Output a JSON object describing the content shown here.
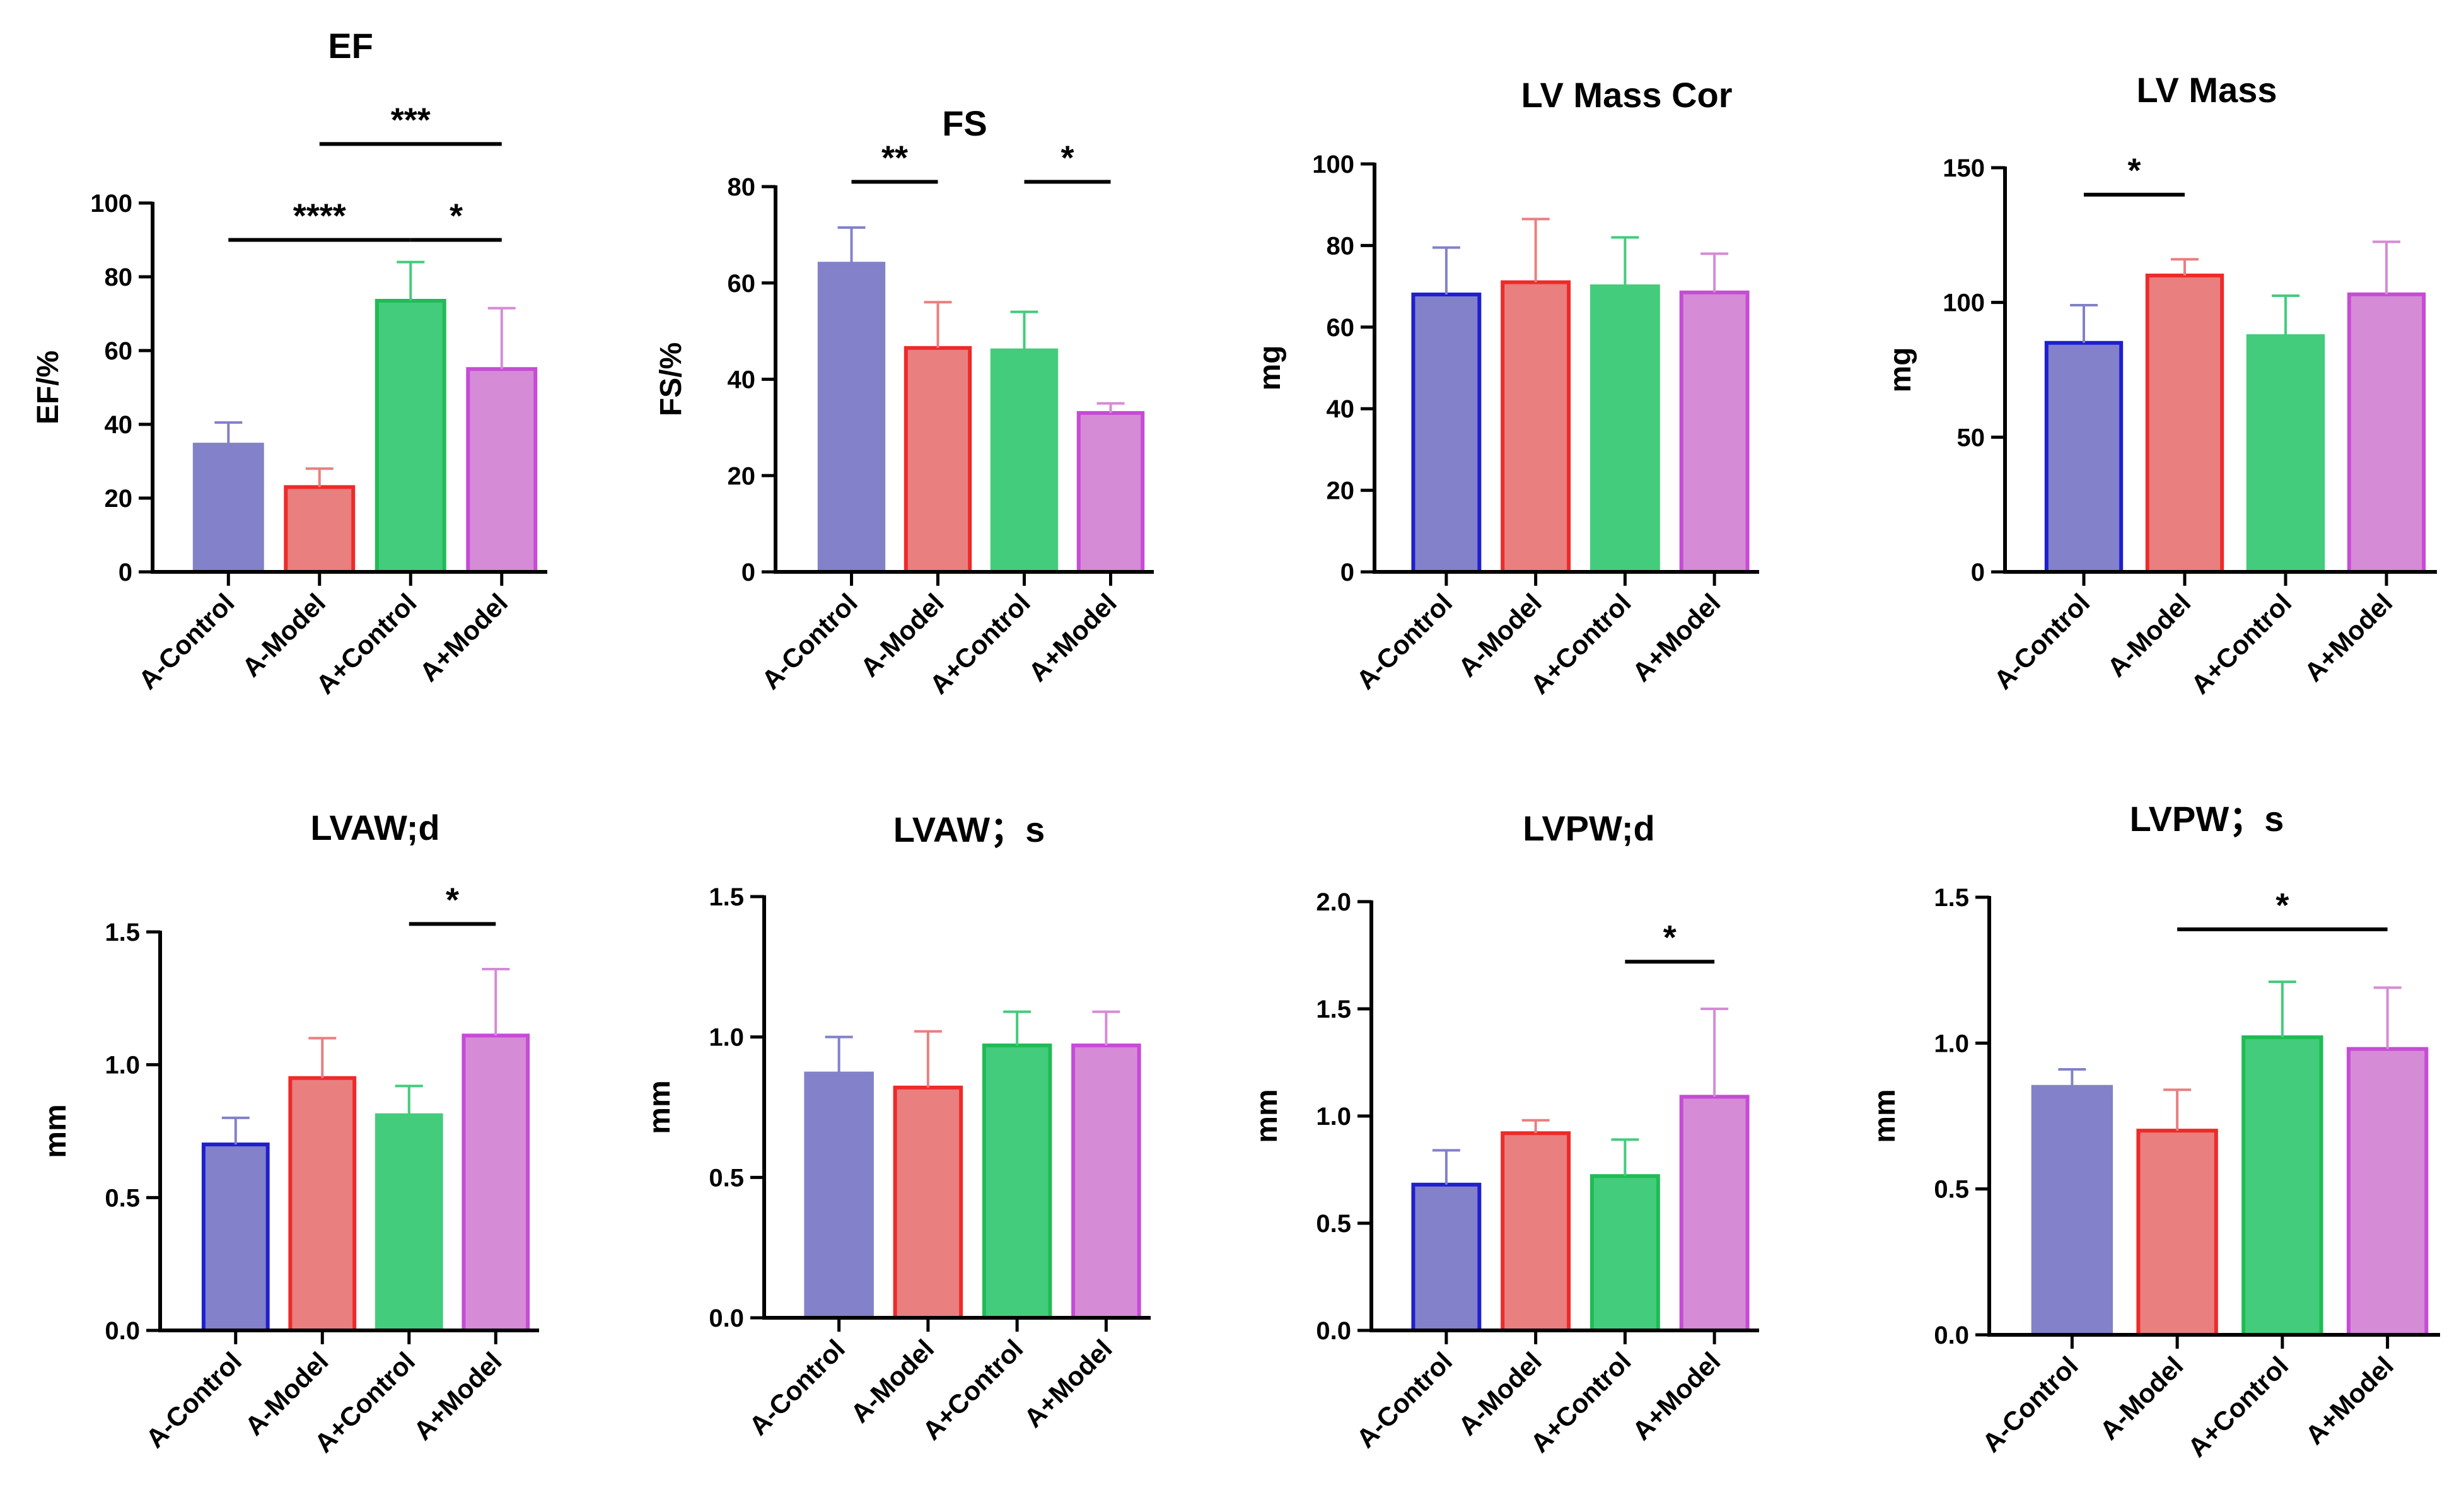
{
  "colors": {
    "fills": [
      "#8281c9",
      "#e97f7f",
      "#43cc7c",
      "#d68bd6"
    ],
    "edges_dark": [
      "#1f1fd0",
      "#ee2a2a",
      "#20bb55",
      "#c64bd6"
    ],
    "edges_light": [
      "#8281c9",
      "#e97f7f",
      "#43cc7c",
      "#d68bd6"
    ],
    "axis": "#000000"
  },
  "chart_data": [
    {
      "type": "bar",
      "title": "EF",
      "ylabel": "EF/%",
      "categories": [
        "A-Control",
        "A-Model",
        "A+Control",
        "A+Model"
      ],
      "values": [
        34.5,
        23,
        73.5,
        55
      ],
      "errors": [
        6,
        5,
        10.5,
        16.5
      ],
      "ylim": [
        0,
        100
      ],
      "yticks": [
        "0",
        "20",
        "40",
        "60",
        "80",
        "100"
      ],
      "edge_style": [
        "light",
        "dark",
        "dark",
        "dark"
      ],
      "significance": [
        {
          "from": 0,
          "to": 2,
          "label": "****",
          "level": 90
        },
        {
          "from": 2,
          "to": 3,
          "label": "*",
          "level": 90
        },
        {
          "from": 1,
          "to": 3,
          "label": "***",
          "level": 116
        }
      ]
    },
    {
      "type": "bar",
      "title": "FS",
      "ylabel": "FS/%",
      "categories": [
        "A-Control",
        "A-Model",
        "A+Control",
        "A+Model"
      ],
      "values": [
        64,
        46.5,
        46,
        33
      ],
      "errors": [
        7.5,
        9.5,
        8,
        2
      ],
      "ylim": [
        0,
        80
      ],
      "yticks": [
        "0",
        "20",
        "40",
        "60",
        "80"
      ],
      "edge_style": [
        "light",
        "dark",
        "light",
        "dark"
      ],
      "significance": [
        {
          "from": 0,
          "to": 1,
          "label": "**",
          "level": 81
        },
        {
          "from": 2,
          "to": 3,
          "label": "*",
          "level": 81
        }
      ]
    },
    {
      "type": "bar",
      "title": "LV Mass Cor",
      "ylabel": "mg",
      "categories": [
        "A-Control",
        "A-Model",
        "A+Control",
        "A+Model"
      ],
      "values": [
        68,
        71,
        70,
        68.5
      ],
      "errors": [
        11.5,
        15.5,
        12,
        9.5
      ],
      "ylim": [
        0,
        100
      ],
      "yticks": [
        "0",
        "20",
        "40",
        "60",
        "80",
        "100"
      ],
      "edge_style": [
        "dark",
        "dark",
        "light",
        "dark"
      ],
      "significance": []
    },
    {
      "type": "bar",
      "title": "LV Mass",
      "ylabel": "mg",
      "categories": [
        "A-Control",
        "A-Model",
        "A+Control",
        "A+Model"
      ],
      "values": [
        85,
        110,
        87.5,
        103
      ],
      "errors": [
        14,
        6,
        15,
        19.5
      ],
      "ylim": [
        0,
        150
      ],
      "yticks": [
        "0",
        "50",
        "100",
        "150"
      ],
      "edge_style": [
        "dark",
        "dark",
        "light",
        "dark"
      ],
      "significance": [
        {
          "from": 0,
          "to": 1,
          "label": "*",
          "level": 140
        }
      ]
    },
    {
      "type": "bar",
      "title": "LVAW;d",
      "ylabel": "mm",
      "categories": [
        "A-Control",
        "A-Model",
        "A+Control",
        "A+Model"
      ],
      "values": [
        0.7,
        0.95,
        0.81,
        1.11
      ],
      "errors": [
        0.1,
        0.15,
        0.11,
        0.25
      ],
      "ylim": [
        0,
        1.5
      ],
      "yticks": [
        "0.0",
        "0.5",
        "1.0",
        "1.5"
      ],
      "edge_style": [
        "dark",
        "dark",
        "light",
        "dark"
      ],
      "significance": [
        {
          "from": 2,
          "to": 3,
          "label": "*",
          "level": 1.53
        }
      ]
    },
    {
      "type": "bar",
      "title": "LVAW；s",
      "ylabel": "mm",
      "categories": [
        "A-Control",
        "A-Model",
        "A+Control",
        "A+Model"
      ],
      "values": [
        0.87,
        0.82,
        0.97,
        0.97
      ],
      "errors": [
        0.13,
        0.2,
        0.12,
        0.12
      ],
      "ylim": [
        0,
        1.5
      ],
      "yticks": [
        "0.0",
        "0.5",
        "1.0",
        "1.5"
      ],
      "edge_style": [
        "light",
        "dark",
        "dark",
        "dark"
      ],
      "significance": []
    },
    {
      "type": "bar",
      "title": "LVPW;d",
      "ylabel": "mm",
      "categories": [
        "A-Control",
        "A-Model",
        "A+Control",
        "A+Model"
      ],
      "values": [
        0.68,
        0.92,
        0.72,
        1.09
      ],
      "errors": [
        0.16,
        0.06,
        0.17,
        0.41
      ],
      "ylim": [
        0,
        2.0
      ],
      "yticks": [
        "0.0",
        "0.5",
        "1.0",
        "1.5",
        "2.0"
      ],
      "edge_style": [
        "dark",
        "dark",
        "dark",
        "dark"
      ],
      "significance": [
        {
          "from": 2,
          "to": 3,
          "label": "*",
          "level": 1.72
        }
      ]
    },
    {
      "type": "bar",
      "title": "LVPW；s",
      "ylabel": "mm",
      "categories": [
        "A-Control",
        "A-Model",
        "A+Control",
        "A+Model"
      ],
      "values": [
        0.85,
        0.7,
        1.02,
        0.98
      ],
      "errors": [
        0.06,
        0.14,
        0.19,
        0.21
      ],
      "ylim": [
        0,
        1.5
      ],
      "yticks": [
        "0.0",
        "0.5",
        "1.0",
        "1.5"
      ],
      "edge_style": [
        "light",
        "dark",
        "dark",
        "dark"
      ],
      "significance": [
        {
          "from": 1,
          "to": 3,
          "label": "*",
          "level": 1.39
        }
      ]
    }
  ]
}
